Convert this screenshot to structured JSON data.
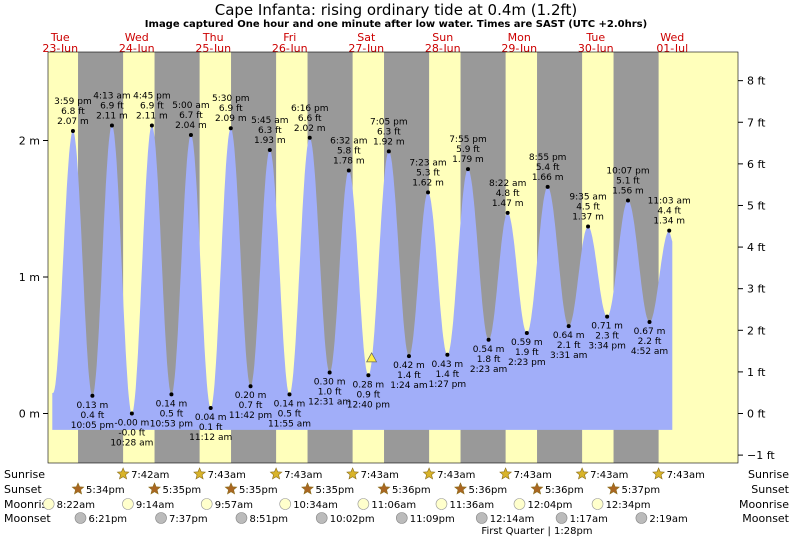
{
  "title": "Cape Infanta: rising  ordinary tide at 0.4m (1.2ft)",
  "subtitle": "Image captured One hour and one minute after low water. Times are SAST (UTC +2.0hrs)",
  "colors": {
    "water": "#a1aef9",
    "day": "#ffffbb",
    "night": "#999999",
    "day_text": "#cc0000",
    "grid": "#000000",
    "sun": "#d9b42a",
    "sunset": "#aa6622",
    "moonrise": "#ffffcc",
    "moonset": "#bbbbbb"
  },
  "days": [
    {
      "name": "Tue",
      "date": "23-Jun"
    },
    {
      "name": "Wed",
      "date": "24-Jun"
    },
    {
      "name": "Thu",
      "date": "25-Jun"
    },
    {
      "name": "Fri",
      "date": "26-Jun"
    },
    {
      "name": "Sat",
      "date": "27-Jun"
    },
    {
      "name": "Sun",
      "date": "28-Jun"
    },
    {
      "name": "Mon",
      "date": "29-Jun"
    },
    {
      "name": "Tue",
      "date": "30-Jun"
    },
    {
      "name": "Wed",
      "date": "01-Jul"
    }
  ],
  "chart_data": {
    "type": "area",
    "ylabel_left_unit": "m",
    "ylabel_right_unit": "ft",
    "ylim_m": [
      -0.3,
      2.6
    ],
    "left_ticks": [
      "0 m",
      "1 m",
      "2 m"
    ],
    "right_ticks": [
      "−1 ft",
      "0 ft",
      "1 ft",
      "2 ft",
      "3 ft",
      "4 ft",
      "5 ft",
      "6 ft",
      "7 ft",
      "8 ft"
    ],
    "series": [
      {
        "values": [
          {
            "t": "Tue 15:59",
            "m": 2.07,
            "kind": "high",
            "labels": [
              "3:59 pm",
              "6.8 ft",
              "2.07 m"
            ]
          },
          {
            "t": "Tue 22:05",
            "m": 0.13,
            "kind": "low",
            "labels": [
              "0.13 m",
              "0.4 ft",
              "10:05 pm"
            ]
          },
          {
            "t": "Wed 04:13",
            "m": 2.11,
            "kind": "high",
            "labels": [
              "4:13 am",
              "6.9 ft",
              "2.11 m"
            ]
          },
          {
            "t": "Wed 10:28",
            "m": 0.0,
            "kind": "low",
            "labels": [
              "-0.00 m",
              "-0.0 ft",
              "10:28 am"
            ]
          },
          {
            "t": "Wed 16:45",
            "m": 2.11,
            "kind": "high",
            "labels": [
              "4:45 pm",
              "6.9 ft",
              "2.11 m"
            ]
          },
          {
            "t": "Wed 22:53",
            "m": 0.14,
            "kind": "low",
            "labels": [
              "0.14 m",
              "0.5 ft",
              "10:53 pm"
            ]
          },
          {
            "t": "Thu 05:00",
            "m": 2.04,
            "kind": "high",
            "labels": [
              "5:00 am",
              "6.7 ft",
              "2.04 m"
            ]
          },
          {
            "t": "Thu 11:12",
            "m": 0.04,
            "kind": "low",
            "labels": [
              "0.04 m",
              "0.1 ft",
              "11:12 am"
            ]
          },
          {
            "t": "Thu 17:30",
            "m": 2.09,
            "kind": "high",
            "labels": [
              "5:30 pm",
              "6.9 ft",
              "2.09 m"
            ]
          },
          {
            "t": "Thu 23:42",
            "m": 0.2,
            "kind": "low",
            "labels": [
              "0.20 m",
              "0.7 ft",
              "11:42 pm"
            ]
          },
          {
            "t": "Fri 05:45",
            "m": 1.93,
            "kind": "high",
            "labels": [
              "5:45 am",
              "6.3 ft",
              "1.93 m"
            ]
          },
          {
            "t": "Fri 11:55",
            "m": 0.14,
            "kind": "low",
            "labels": [
              "0.14 m",
              "0.5 ft",
              "11:55 am"
            ]
          },
          {
            "t": "Fri 18:16",
            "m": 2.02,
            "kind": "high",
            "labels": [
              "6:16 pm",
              "6.6 ft",
              "2.02 m"
            ]
          },
          {
            "t": "Sat 00:31",
            "m": 0.3,
            "kind": "low",
            "labels": [
              "0.30 m",
              "1.0 ft",
              "12:31 am"
            ]
          },
          {
            "t": "Sat 06:32",
            "m": 1.78,
            "kind": "high",
            "labels": [
              "6:32 am",
              "5.8 ft",
              "1.78 m"
            ]
          },
          {
            "t": "Sat 12:40",
            "m": 0.28,
            "kind": "low",
            "labels": [
              "0.28 m",
              "0.9 ft",
              "12:40 pm"
            ]
          },
          {
            "t": "Sat 19:05",
            "m": 1.92,
            "kind": "high",
            "labels": [
              "7:05 pm",
              "6.3 ft",
              "1.92 m"
            ]
          },
          {
            "t": "Sun 01:24",
            "m": 0.42,
            "kind": "low",
            "labels": [
              "0.42 m",
              "1.4 ft",
              "1:24 am"
            ]
          },
          {
            "t": "Sun 07:23",
            "m": 1.62,
            "kind": "high",
            "labels": [
              "7:23 am",
              "5.3 ft",
              "1.62 m"
            ]
          },
          {
            "t": "Sun 13:27",
            "m": 0.43,
            "kind": "low",
            "labels": [
              "0.43 m",
              "1.4 ft",
              "1:27 pm"
            ]
          },
          {
            "t": "Sun 19:55",
            "m": 1.79,
            "kind": "high",
            "labels": [
              "7:55 pm",
              "5.9 ft",
              "1.79 m"
            ]
          },
          {
            "t": "Mon 02:23",
            "m": 0.54,
            "kind": "low",
            "labels": [
              "0.54 m",
              "1.8 ft",
              "2:23 am"
            ]
          },
          {
            "t": "Mon 08:22",
            "m": 1.47,
            "kind": "high",
            "labels": [
              "8:22 am",
              "4.8 ft",
              "1.47 m"
            ]
          },
          {
            "t": "Mon 14:23",
            "m": 0.59,
            "kind": "low",
            "labels": [
              "0.59 m",
              "1.9 ft",
              "2:23 pm"
            ]
          },
          {
            "t": "Mon 20:55",
            "m": 1.66,
            "kind": "high",
            "labels": [
              "8:55 pm",
              "5.4 ft",
              "1.66 m"
            ]
          },
          {
            "t": "Tue 03:31",
            "m": 0.64,
            "kind": "low",
            "labels": [
              "0.64 m",
              "2.1 ft",
              "3:31 am"
            ]
          },
          {
            "t": "Tue 09:35",
            "m": 1.37,
            "kind": "high",
            "labels": [
              "9:35 am",
              "4.5 ft",
              "1.37 m"
            ]
          },
          {
            "t": "Tue 15:34",
            "m": 0.71,
            "kind": "low",
            "labels": [
              "0.71 m",
              "2.3 ft",
              "3:34 pm"
            ]
          },
          {
            "t": "Tue 22:07",
            "m": 1.56,
            "kind": "high",
            "labels": [
              "10:07 pm",
              "5.1 ft",
              "1.56 m"
            ]
          },
          {
            "t": "Wed 04:52",
            "m": 0.67,
            "kind": "low",
            "labels": [
              "0.67 m",
              "2.2 ft",
              "4:52 am"
            ]
          },
          {
            "t": "Wed 11:03",
            "m": 1.34,
            "kind": "high",
            "labels": [
              "11:03 am",
              "4.4 ft",
              "1.34 m"
            ]
          }
        ]
      }
    ],
    "current_marker": {
      "t": "Sat 13:41",
      "m": 0.4
    }
  },
  "row_labels": {
    "sunrise": "Sunrise",
    "sunset": "Sunset",
    "moonrise": "Moonrise",
    "moonset": "Moonset"
  },
  "sunrise": [
    "7:42am",
    "7:43am",
    "7:43am",
    "7:43am",
    "7:43am",
    "7:43am",
    "7:43am",
    "7:43am"
  ],
  "sunset": [
    "5:34pm",
    "5:35pm",
    "5:35pm",
    "5:35pm",
    "5:36pm",
    "5:36pm",
    "5:36pm",
    "5:37pm"
  ],
  "moonrise": [
    "8:22am",
    "9:14am",
    "9:57am",
    "10:34am",
    "11:06am",
    "11:36am",
    "12:04pm",
    "12:34pm"
  ],
  "moonset": [
    "6:21pm",
    "7:37pm",
    "8:51pm",
    "10:02pm",
    "11:09pm",
    "12:14am",
    "1:17am",
    "2:19am"
  ],
  "moon_phase_note": "First Quarter | 1:28pm"
}
